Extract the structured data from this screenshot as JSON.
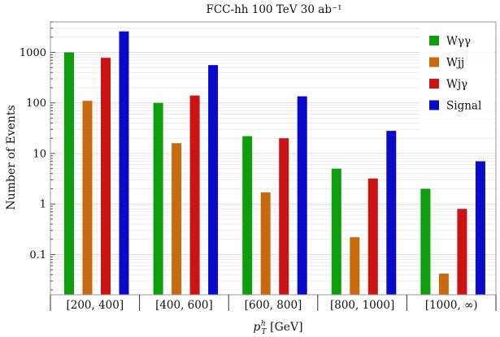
{
  "chart_data": {
    "type": "bar",
    "title": "FCC-hh  100 TeV  30 ab⁻¹",
    "xlabel": "pᵀʰ [GeV]",
    "xlabel_main": "p",
    "xlabel_sub": "T",
    "xlabel_sup": "h",
    "xlabel_unit": " [GeV]",
    "ylabel": "Number of Events",
    "yscale": "log",
    "ylim": [
      0.016,
      4000
    ],
    "yticks": [
      {
        "value": 0.1,
        "label": "0.1"
      },
      {
        "value": 1,
        "label": "1"
      },
      {
        "value": 10,
        "label": "10"
      },
      {
        "value": 100,
        "label": "100"
      },
      {
        "value": 1000,
        "label": "1000"
      }
    ],
    "grid": true,
    "legend_position": "top-right",
    "categories": [
      "[200, 400]",
      "[400, 600]",
      "[600, 800]",
      "[800, 1000]",
      "[1000, ∞)"
    ],
    "series": [
      {
        "name": "Wγγ",
        "color": "#0d9d0d",
        "values": [
          1000,
          100,
          22,
          5,
          2
        ]
      },
      {
        "name": "Wjj",
        "color": "#c96a0f",
        "values": [
          110,
          16,
          1.7,
          0.22,
          0.042
        ]
      },
      {
        "name": "Wjγ",
        "color": "#cc1414",
        "values": [
          780,
          140,
          20,
          3.2,
          0.8
        ]
      },
      {
        "name": "Signal",
        "color": "#0a0ac8",
        "values": [
          2600,
          560,
          135,
          28,
          7
        ]
      }
    ]
  }
}
